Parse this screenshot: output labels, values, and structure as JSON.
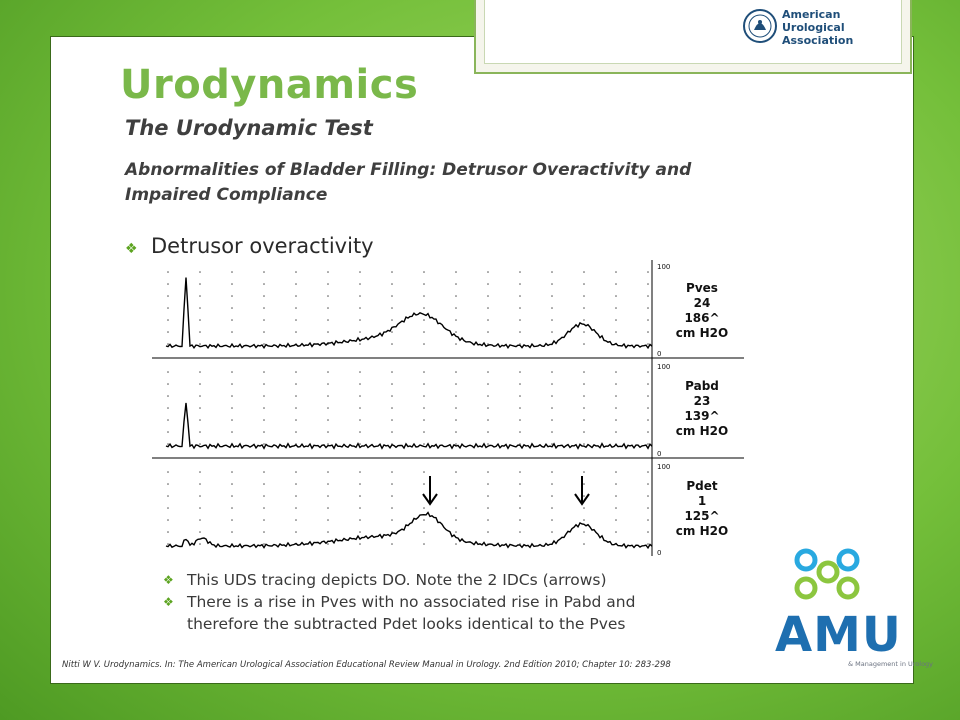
{
  "header": {
    "logo_org_line1": "American",
    "logo_org_line2": "Urological",
    "logo_org_line3": "Association"
  },
  "title": "Urodynamics",
  "subtitle": "The Urodynamic Test",
  "section_heading_line1": "Abnormalities of Bladder Filling: Detrusor Overactivity and",
  "section_heading_line2": "Impaired Compliance",
  "bullet": "Detrusor overactivity",
  "tracing": {
    "channels": [
      {
        "name": "Pves",
        "value": "24",
        "range": "186^",
        "unit": "cm H2O",
        "top": "100",
        "bottom": "0"
      },
      {
        "name": "Pabd",
        "value": "23",
        "range": "139^",
        "unit": "cm H2O",
        "top": "100",
        "bottom": "0"
      },
      {
        "name": "Pdet",
        "value": "1",
        "range": "125^",
        "unit": "cm H2O",
        "top": "100",
        "bottom": "0"
      }
    ]
  },
  "sub_bullets": [
    "This UDS tracing depicts DO. Note the 2 IDCs (arrows)",
    "There is a rise in Pves with no associated rise in Pabd and",
    "therefore the subtracted Pdet looks identical to the Pves"
  ],
  "citation": "Nitti W V. Urodynamics. In: The American Urological Association Educational Review Manual in Urology. 2nd Edition 2010; Chapter 10: 283-298",
  "amu": {
    "wordmark": "AMU",
    "tagline": "& Management in Urology"
  },
  "colors": {
    "background": "#74bf3a",
    "title": "#7ab84a",
    "bullet": "#5da421",
    "amu_blue": "#1e6fb0",
    "amu_green": "#8cc63f"
  }
}
